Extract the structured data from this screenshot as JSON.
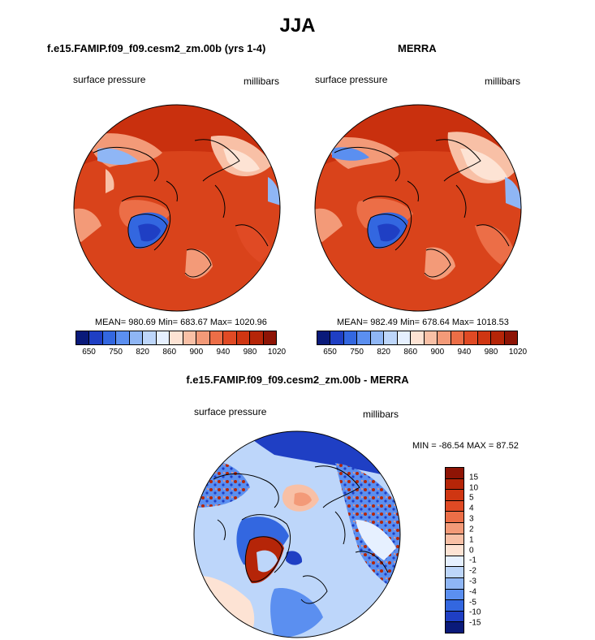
{
  "figure": {
    "title": "JJA"
  },
  "chart_data": [
    {
      "type": "heatmap",
      "projection": "polar-stereographic",
      "title": "f.e15.FAMIP.f09_f09.cesm2_zm.00b (yrs 1-4)",
      "left_label": "surface pressure",
      "right_label": "millibars",
      "stats": {
        "mean": "980.69",
        "min": "683.67",
        "max": "1020.96"
      },
      "stats_text": "MEAN= 980.69  Min= 683.67  Max= 1020.96",
      "colorbar_ticks": [
        "650",
        "750",
        "820",
        "860",
        "900",
        "940",
        "980",
        "1020"
      ]
    },
    {
      "type": "heatmap",
      "projection": "polar-stereographic",
      "title": "MERRA",
      "left_label": "surface pressure",
      "right_label": "millibars",
      "stats": {
        "mean": "982.49",
        "min": "678.64",
        "max": "1018.53"
      },
      "stats_text": "MEAN= 982.49  Min= 678.64  Max= 1018.53",
      "colorbar_ticks": [
        "650",
        "750",
        "820",
        "860",
        "900",
        "940",
        "980",
        "1020"
      ]
    },
    {
      "type": "heatmap",
      "projection": "polar-stereographic",
      "title": "f.e15.FAMIP.f09_f09.cesm2_zm.00b - MERRA",
      "left_label": "surface pressure",
      "right_label": "millibars",
      "stats": {
        "min": "-86.54",
        "max": "87.52"
      },
      "stats_text": "MIN = -86.54 MAX =  87.52",
      "colorbar_ticks": [
        "15",
        "10",
        "5",
        "4",
        "3",
        "2",
        "1",
        "0",
        "-1",
        "-2",
        "-3",
        "-4",
        "-5",
        "-10",
        "-15"
      ]
    }
  ],
  "colors": {
    "abs_scale": [
      "#0a1a7a",
      "#1f3fc4",
      "#3367e0",
      "#5b8ff0",
      "#8fb6f5",
      "#bdd6fa",
      "#e6f0ff",
      "#fde3d4",
      "#f8c0a6",
      "#f39a78",
      "#ec6e47",
      "#e04a24",
      "#cf3612",
      "#b52508",
      "#8e1405"
    ],
    "diff_scale": [
      "#8e1405",
      "#b52508",
      "#cf3612",
      "#e04a24",
      "#ec6e47",
      "#f39a78",
      "#f8c0a6",
      "#fde3d4",
      "#e6f0ff",
      "#bdd6fa",
      "#8fb6f5",
      "#5b8ff0",
      "#3367e0",
      "#1f3fc4",
      "#0a1a7a"
    ]
  }
}
